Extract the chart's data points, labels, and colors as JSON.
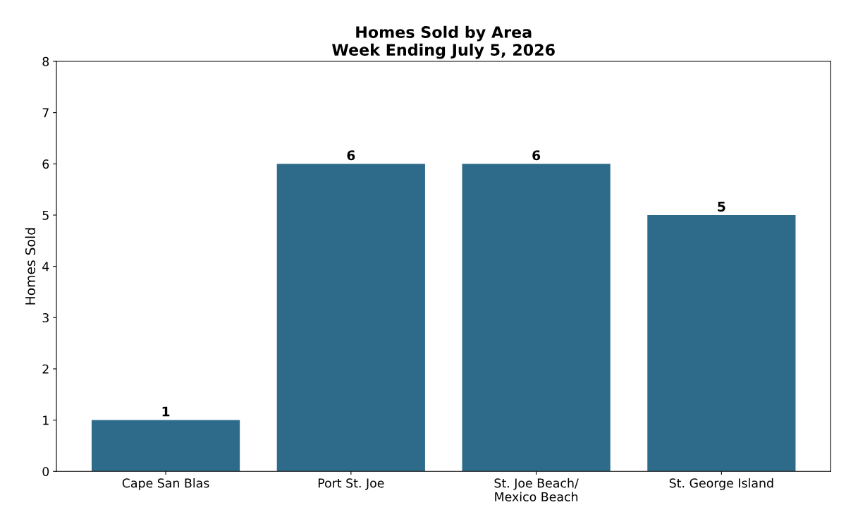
{
  "chart_data": {
    "type": "bar",
    "title": "Homes Sold by Area\nWeek Ending July 5, 2026",
    "ylabel": "Homes Sold",
    "categories": [
      "Cape San Blas",
      "Port St. Joe",
      "St. Joe Beach/\nMexico Beach",
      "St. George Island"
    ],
    "values": [
      1,
      6,
      6,
      5
    ],
    "color": "#2e6b8a",
    "ylim": [
      0,
      8
    ],
    "yticks": [
      0,
      1,
      2,
      3,
      4,
      5,
      6,
      7,
      8
    ],
    "grid": false,
    "data_labels": true
  }
}
